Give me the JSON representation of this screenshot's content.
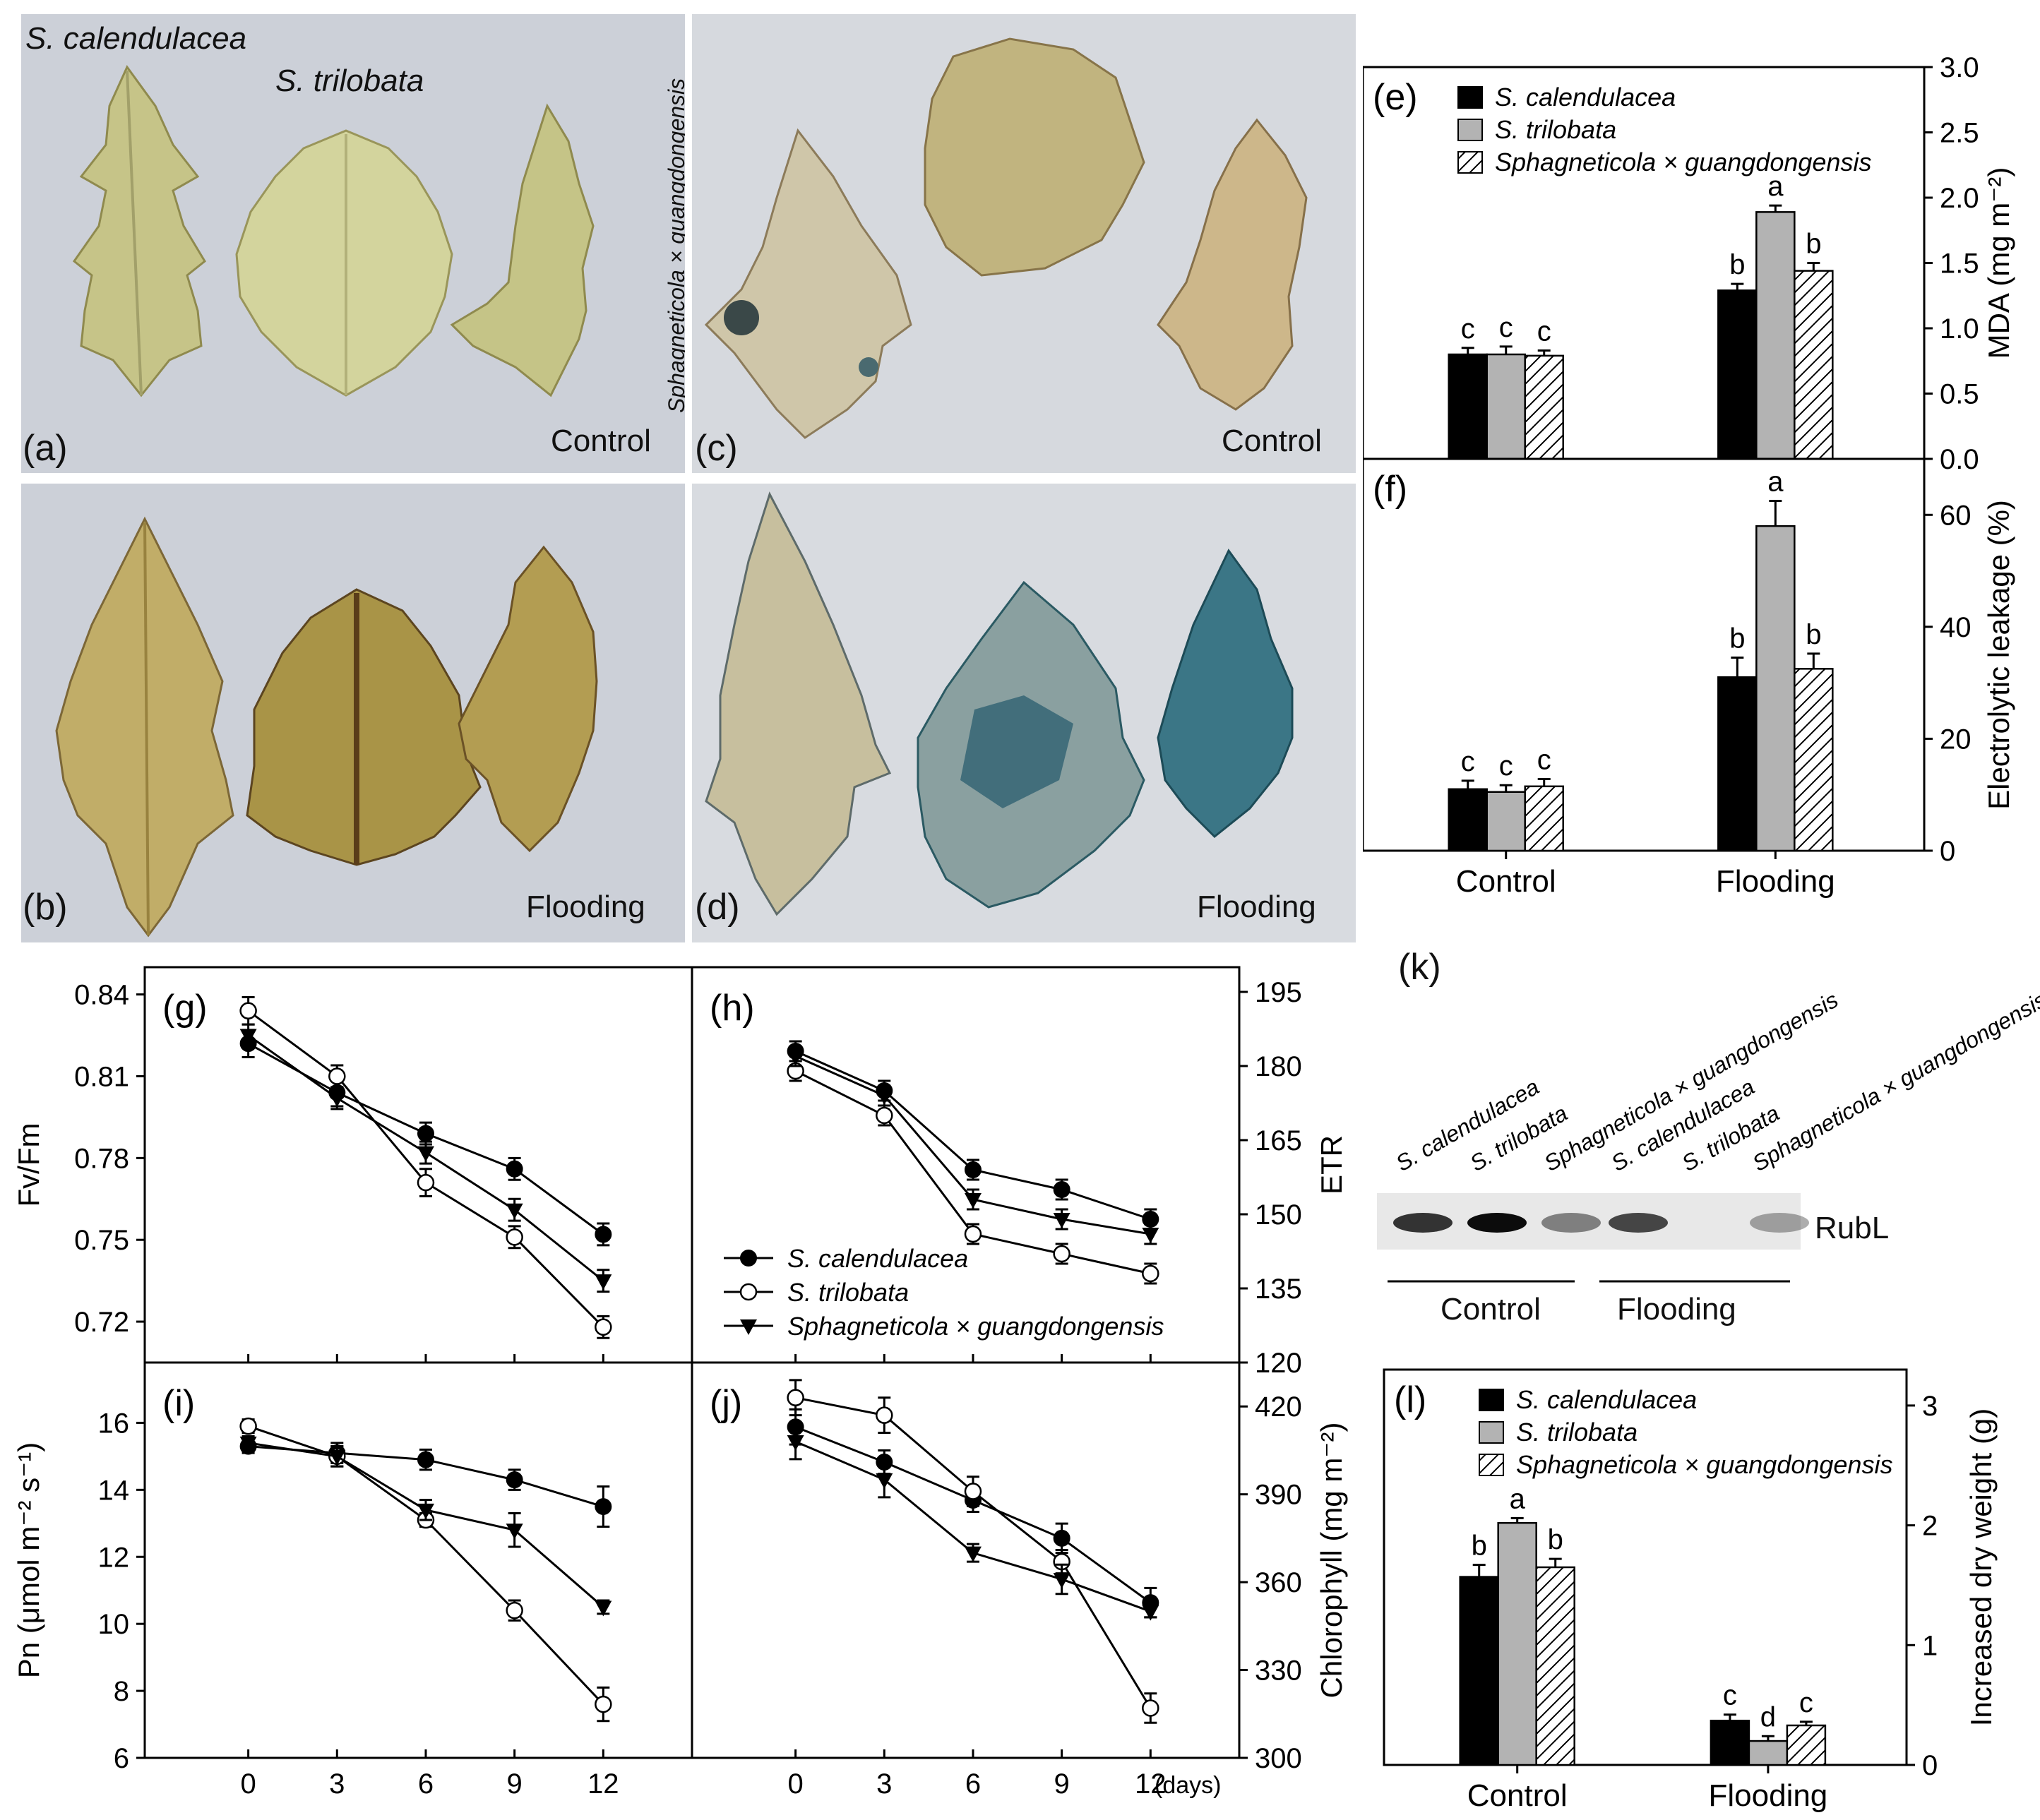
{
  "photos": {
    "species": {
      "calendulacea": "S. calendulacea",
      "trilobata": "S. trilobata",
      "hybrid": "Sphagneticola × guangdongensis"
    },
    "panels": [
      {
        "letter": "(a)",
        "condition": "Control"
      },
      {
        "letter": "(b)",
        "condition": "Flooding"
      },
      {
        "letter": "(c)",
        "condition": "Control"
      },
      {
        "letter": "(d)",
        "condition": "Flooding"
      }
    ]
  },
  "western_blot": {
    "letter": "(k)",
    "lanes": [
      "S. calendulacea",
      "S. trilobata",
      "Sphagneticola × guangdongensis",
      "S. calendulacea",
      "S. trilobata",
      "Sphagneticola × guangdongensis"
    ],
    "band_label": "RubL",
    "groups": [
      "Control",
      "Flooding"
    ],
    "band_intensity": [
      0.78,
      0.95,
      0.45,
      0.7,
      0.0,
      0.32
    ]
  },
  "legend_series": [
    "S. calendulacea",
    "S. trilobata",
    "Sphagneticola × guangdongensis"
  ],
  "colors": {
    "black": "#000000",
    "grey": "#b3b3b3",
    "white": "#ffffff"
  },
  "chart_data": [
    {
      "panel": "(e)",
      "type": "bar",
      "categories": [
        "Control",
        "Flooding"
      ],
      "ylabel": "MDA (mg m⁻²)",
      "ylim": [
        0,
        3.0
      ],
      "yticks": [
        "0.0",
        "0.5",
        "1.0",
        "1.5",
        "2.0",
        "2.5",
        "3.0"
      ],
      "series": [
        {
          "name": "S. calendulacea",
          "values": [
            0.8,
            1.29
          ],
          "errors": [
            0.05,
            0.05
          ],
          "letters": [
            "c",
            "b"
          ]
        },
        {
          "name": "S. trilobata",
          "values": [
            0.8,
            1.89
          ],
          "errors": [
            0.06,
            0.05
          ],
          "letters": [
            "c",
            "a"
          ]
        },
        {
          "name": "Sphagneticola × guangdongensis",
          "values": [
            0.79,
            1.44
          ],
          "errors": [
            0.04,
            0.06
          ],
          "letters": [
            "c",
            "b"
          ]
        }
      ],
      "legend": "top-left"
    },
    {
      "panel": "(f)",
      "type": "bar",
      "categories": [
        "Control",
        "Flooding"
      ],
      "ylabel": "Electrolytic leakage (%)",
      "ylim": [
        0,
        70
      ],
      "yticks": [
        "0",
        "20",
        "40",
        "60"
      ],
      "series": [
        {
          "name": "S. calendulacea",
          "values": [
            11,
            31
          ],
          "errors": [
            1.5,
            3.5
          ],
          "letters": [
            "c",
            "b"
          ]
        },
        {
          "name": "S. trilobata",
          "values": [
            10.5,
            58
          ],
          "errors": [
            1.2,
            4.5
          ],
          "letters": [
            "c",
            "a"
          ]
        },
        {
          "name": "Sphagneticola × guangdongensis",
          "values": [
            11.5,
            32.5
          ],
          "errors": [
            1.3,
            2.7
          ],
          "letters": [
            "c",
            "b"
          ]
        }
      ]
    },
    {
      "panel": "(g)",
      "type": "line",
      "ylabel": "Fv/Fm",
      "x": [
        0,
        3,
        6,
        9,
        12
      ],
      "xlim": [
        -3.5,
        15
      ],
      "ylim": [
        0.705,
        0.85
      ],
      "yticks": [
        "0.72",
        "0.75",
        "0.78",
        "0.81",
        "0.84"
      ],
      "series": [
        {
          "name": "S. calendulacea",
          "marker": "filled-circle",
          "values": [
            0.822,
            0.804,
            0.789,
            0.776,
            0.752
          ],
          "errors": [
            0.005,
            0.005,
            0.004,
            0.004,
            0.004
          ]
        },
        {
          "name": "S. trilobata",
          "marker": "open-circle",
          "values": [
            0.834,
            0.81,
            0.771,
            0.751,
            0.718
          ],
          "errors": [
            0.005,
            0.004,
            0.005,
            0.004,
            0.004
          ]
        },
        {
          "name": "Sphagneticola × guangdongensis",
          "marker": "filled-triangle",
          "values": [
            0.825,
            0.802,
            0.782,
            0.761,
            0.735
          ],
          "errors": [
            0.004,
            0.004,
            0.004,
            0.004,
            0.004
          ]
        }
      ]
    },
    {
      "panel": "(h)",
      "type": "line",
      "ylabel": "ETR",
      "x": [
        0,
        3,
        6,
        9,
        12
      ],
      "xlim": [
        -3.5,
        15
      ],
      "ylim": [
        120,
        200
      ],
      "yticks": [
        "120",
        "135",
        "150",
        "165",
        "180",
        "195"
      ],
      "series": [
        {
          "name": "S. calendulacea",
          "marker": "filled-circle",
          "values": [
            183,
            175,
            159,
            155,
            149
          ],
          "errors": [
            2,
            2,
            2,
            2,
            2
          ]
        },
        {
          "name": "S. trilobata",
          "marker": "open-circle",
          "values": [
            179,
            170,
            146,
            142,
            138
          ],
          "errors": [
            2,
            2,
            2,
            2,
            2
          ]
        },
        {
          "name": "Sphagneticola × guangdongensis",
          "marker": "filled-triangle",
          "values": [
            182,
            174,
            153,
            149,
            146
          ],
          "errors": [
            2,
            2,
            2,
            2,
            2
          ]
        }
      ],
      "legend": "bottom-left"
    },
    {
      "panel": "(i)",
      "type": "line",
      "ylabel": "Pn (μmol m⁻² s⁻¹)",
      "x": [
        0,
        3,
        6,
        9,
        12
      ],
      "xlabel": "",
      "xticks": [
        "0",
        "3",
        "6",
        "9",
        "12"
      ],
      "xlim": [
        -3.5,
        15
      ],
      "ylim": [
        6,
        17.8
      ],
      "yticks": [
        "6",
        "8",
        "10",
        "12",
        "14",
        "16"
      ],
      "series": [
        {
          "name": "S. calendulacea",
          "marker": "filled-circle",
          "values": [
            15.3,
            15.1,
            14.9,
            14.3,
            13.5
          ],
          "errors": [
            0.2,
            0.3,
            0.3,
            0.3,
            0.6
          ]
        },
        {
          "name": "S. trilobata",
          "marker": "open-circle",
          "values": [
            15.9,
            15.0,
            13.1,
            10.4,
            7.6
          ],
          "errors": [
            0.2,
            0.3,
            0.2,
            0.3,
            0.5
          ]
        },
        {
          "name": "Sphagneticola × guangdongensis",
          "marker": "filled-triangle",
          "values": [
            15.4,
            15.0,
            13.4,
            12.8,
            10.5
          ],
          "errors": [
            0.2,
            0.3,
            0.3,
            0.5,
            0.2
          ]
        }
      ]
    },
    {
      "panel": "(j)",
      "type": "line",
      "ylabel": "Chlorophyll (mg m⁻²)",
      "x": [
        0,
        3,
        6,
        9,
        12
      ],
      "xlabel": "(days)",
      "xticks": [
        "0",
        "3",
        "6",
        "9",
        "12"
      ],
      "xlim": [
        -3.5,
        15
      ],
      "ylim": [
        300,
        435
      ],
      "yticks": [
        "300",
        "330",
        "360",
        "390",
        "420"
      ],
      "series": [
        {
          "name": "S. calendulacea",
          "marker": "filled-circle",
          "values": [
            413,
            401,
            388,
            375,
            353
          ],
          "errors": [
            6,
            4,
            4,
            5,
            5
          ]
        },
        {
          "name": "S. trilobata",
          "marker": "open-circle",
          "values": [
            423,
            417,
            391,
            367,
            317
          ],
          "errors": [
            6,
            6,
            5,
            4,
            5
          ]
        },
        {
          "name": "Sphagneticola × guangdongensis",
          "marker": "filled-triangle",
          "values": [
            408,
            395,
            370,
            361,
            350
          ],
          "errors": [
            6,
            6,
            3,
            5,
            2
          ]
        }
      ]
    },
    {
      "panel": "(l)",
      "type": "bar",
      "categories": [
        "Control",
        "Flooding"
      ],
      "ylabel": "Increased dry weight (g)",
      "ylim": [
        0,
        3.3
      ],
      "yticks": [
        "0",
        "1",
        "2",
        "3"
      ],
      "series": [
        {
          "name": "S. calendulacea",
          "values": [
            1.57,
            0.37
          ],
          "errors": [
            0.1,
            0.05
          ],
          "letters": [
            "b",
            "c"
          ]
        },
        {
          "name": "S. trilobata",
          "values": [
            2.02,
            0.2
          ],
          "errors": [
            0.04,
            0.04
          ],
          "letters": [
            "a",
            "d"
          ]
        },
        {
          "name": "Sphagneticola × guangdongensis",
          "values": [
            1.65,
            0.33
          ],
          "errors": [
            0.07,
            0.03
          ],
          "letters": [
            "b",
            "c"
          ]
        }
      ],
      "legend": "top-left"
    }
  ]
}
